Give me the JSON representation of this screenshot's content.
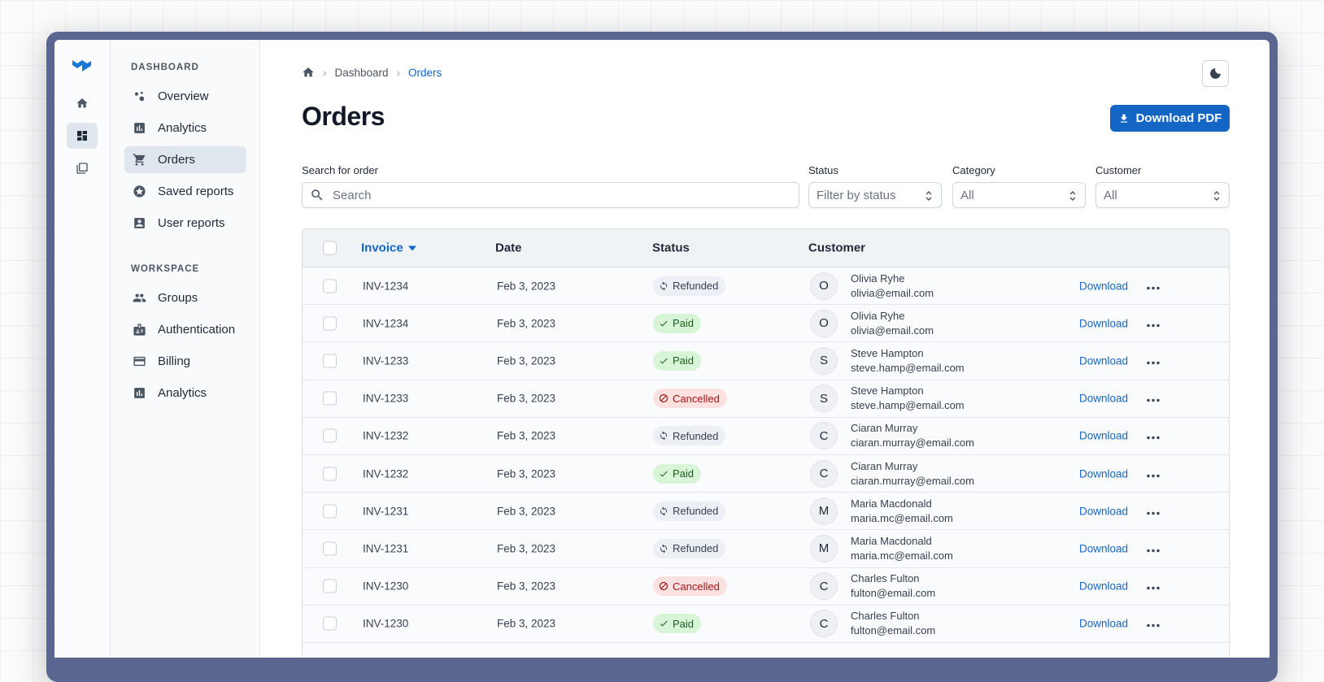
{
  "nav": {
    "sections": [
      {
        "title": "DASHBOARD",
        "items": [
          "Overview",
          "Analytics",
          "Orders",
          "Saved reports",
          "User reports"
        ]
      },
      {
        "title": "WORKSPACE",
        "items": [
          "Groups",
          "Authentication",
          "Billing",
          "Analytics"
        ]
      }
    ],
    "active": "2"
  },
  "breadcrumb": [
    "Dashboard",
    "Orders"
  ],
  "header": {
    "title": "Orders",
    "button": "Download PDF"
  },
  "filters": {
    "search": {
      "label": "Search for order",
      "placeholder": "Search"
    },
    "status": {
      "label": "Status",
      "placeholder": "Filter by status"
    },
    "category": {
      "label": "Category",
      "value": "All"
    },
    "customer": {
      "label": "Customer",
      "value": "All"
    }
  },
  "table": {
    "columns": [
      "Invoice",
      "Date",
      "Status",
      "Customer"
    ],
    "rows": [
      {
        "invoice": "INV-1234",
        "date": "Feb 3, 2023",
        "status": "Refunded",
        "status_color": "gray",
        "initial": "O",
        "name": "Olivia Ryhe",
        "email": "olivia@email.com",
        "action": "Download"
      },
      {
        "invoice": "INV-1234",
        "date": "Feb 3, 2023",
        "status": "Paid",
        "status_color": "green",
        "initial": "O",
        "name": "Olivia Ryhe",
        "email": "olivia@email.com",
        "action": "Download"
      },
      {
        "invoice": "INV-1233",
        "date": "Feb 3, 2023",
        "status": "Paid",
        "status_color": "green",
        "initial": "S",
        "name": "Steve Hampton",
        "email": "steve.hamp@email.com",
        "action": "Download"
      },
      {
        "invoice": "INV-1233",
        "date": "Feb 3, 2023",
        "status": "Cancelled",
        "status_color": "red",
        "initial": "S",
        "name": "Steve Hampton",
        "email": "steve.hamp@email.com",
        "action": "Download"
      },
      {
        "invoice": "INV-1232",
        "date": "Feb 3, 2023",
        "status": "Refunded",
        "status_color": "gray",
        "initial": "C",
        "name": "Ciaran Murray",
        "email": "ciaran.murray@email.com",
        "action": "Download"
      },
      {
        "invoice": "INV-1232",
        "date": "Feb 3, 2023",
        "status": "Paid",
        "status_color": "green",
        "initial": "C",
        "name": "Ciaran Murray",
        "email": "ciaran.murray@email.com",
        "action": "Download"
      },
      {
        "invoice": "INV-1231",
        "date": "Feb 3, 2023",
        "status": "Refunded",
        "status_color": "gray",
        "initial": "M",
        "name": "Maria Macdonald",
        "email": "maria.mc@email.com",
        "action": "Download"
      },
      {
        "invoice": "INV-1231",
        "date": "Feb 3, 2023",
        "status": "Refunded",
        "status_color": "gray",
        "initial": "M",
        "name": "Maria Macdonald",
        "email": "maria.mc@email.com",
        "action": "Download"
      },
      {
        "invoice": "INV-1230",
        "date": "Feb 3, 2023",
        "status": "Cancelled",
        "status_color": "red",
        "initial": "C",
        "name": "Charles Fulton",
        "email": "fulton@email.com",
        "action": "Download"
      },
      {
        "invoice": "INV-1230",
        "date": "Feb 3, 2023",
        "status": "Paid",
        "status_color": "green",
        "initial": "C",
        "name": "Charles Fulton",
        "email": "fulton@email.com",
        "action": "Download"
      }
    ]
  }
}
